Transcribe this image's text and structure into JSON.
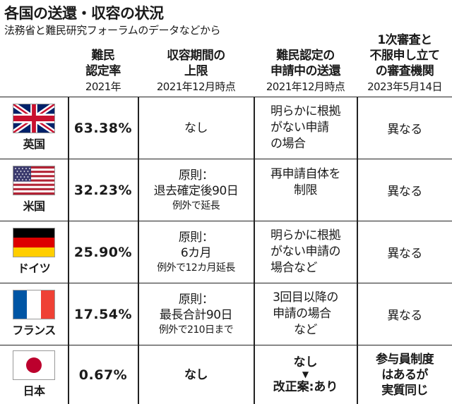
{
  "title": "各国の送還・収容の状況",
  "subtitle": "法務省と難民研究フォーラムのデータなどから",
  "headers": {
    "rate": {
      "l1": "難民",
      "l2": "認定率",
      "note": "2021年"
    },
    "period": {
      "l1": "収容期間の",
      "l2": "上限",
      "note": "2021年12月時点"
    },
    "removal": {
      "l1": "難民認定の",
      "l2": "申請中の送還",
      "note": "2021年12月時点"
    },
    "review": {
      "l1": "1次審査と",
      "l2": "不服申し立て",
      "l3": "の審査機関",
      "note": "2023年5月14日"
    }
  },
  "rows": [
    {
      "country": "英国",
      "flag": "uk-flag-icon",
      "rate": "63.38%",
      "period_main": [
        "なし"
      ],
      "period_sub": "",
      "removal": [
        "明らかに根拠",
        "がない申請",
        "の場合"
      ],
      "review": "異なる"
    },
    {
      "country": "米国",
      "flag": "us-flag-icon",
      "rate": "32.23%",
      "period_main": [
        "原則：",
        "退去確定後90日"
      ],
      "period_sub": "例外で延長",
      "removal": [
        "再申請自体を",
        "制限"
      ],
      "review": "異なる"
    },
    {
      "country": "ドイツ",
      "flag": "germany-flag-icon",
      "rate": "25.90%",
      "period_main": [
        "原則：",
        "6カ月"
      ],
      "period_sub": "例外で12カ月延長",
      "removal": [
        "明らかに根拠",
        "がない申請の",
        "場合など"
      ],
      "review": "異なる"
    },
    {
      "country": "フランス",
      "flag": "france-flag-icon",
      "rate": "17.54%",
      "period_main": [
        "原則：",
        "最長合計90日"
      ],
      "period_sub": "例外で210日まで",
      "removal": [
        "3回目以降の",
        "申請の場合",
        "など"
      ],
      "review": "異なる"
    },
    {
      "country": "日本",
      "flag": "japan-flag-icon",
      "rate": "0.67%",
      "period_main": [
        "なし"
      ],
      "period_sub": "",
      "removal_top": "なし",
      "removal_arrow": "▼",
      "removal_bottom": "改正案:あり",
      "review": [
        "参与員制度",
        "はあるが",
        "実質同じ"
      ]
    }
  ],
  "colors": {
    "uk_blue": "#012169",
    "uk_red": "#C8102E",
    "us_red": "#B22234",
    "us_blue": "#3C3B6E",
    "de_black": "#000000",
    "de_red": "#DD0000",
    "de_gold": "#FFCE00",
    "fr_blue": "#0055A4",
    "fr_red": "#EF4135",
    "jp_red": "#BC002D"
  }
}
